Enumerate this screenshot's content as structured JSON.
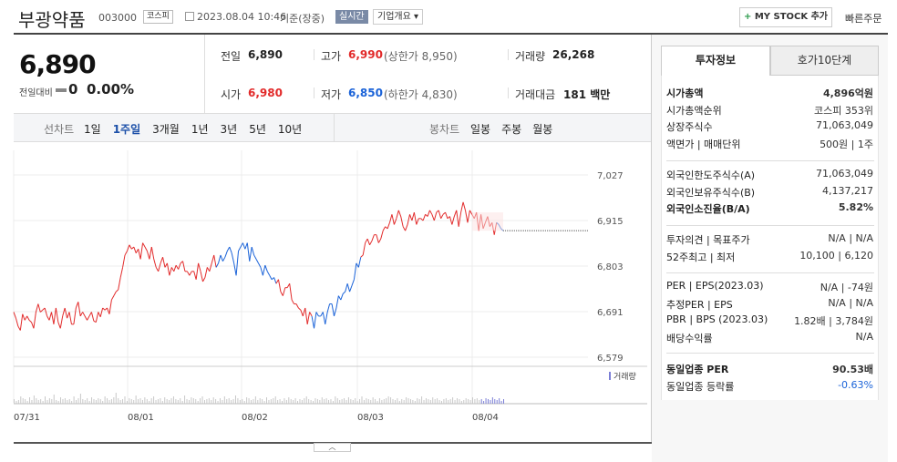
{
  "header": {
    "name": "부광약품",
    "code": "003000",
    "market": "코스피",
    "datetime": "2023.08.04 10:46",
    "basis": "기준(장중)",
    "realtime": "실시간",
    "company_info": "기업개요",
    "mystock": "MY STOCK 추가",
    "quick_order": "빠른주문"
  },
  "price": {
    "current": "6,890",
    "change_label": "전일대비",
    "change_value": "0",
    "change_pct": "0.00%"
  },
  "summary": {
    "prev_label": "전일",
    "prev_val": "6,890",
    "high_label": "고가",
    "high_val": "6,990",
    "upper_label": "(상한가 8,950)",
    "volume_label": "거래량",
    "volume_val": "26,268",
    "open_label": "시가",
    "open_val": "6,980",
    "low_label": "저가",
    "low_val": "6,850",
    "lower_label": "(하한가 4,830)",
    "amount_label": "거래대금",
    "amount_val": "181",
    "amount_unit": "백만"
  },
  "period_tabs": {
    "label": "선차트",
    "items": [
      "1일",
      "1주일",
      "3개월",
      "1년",
      "3년",
      "5년",
      "10년"
    ],
    "active": 1
  },
  "candle_tabs": {
    "label": "봉차트",
    "items": [
      "일봉",
      "주봉",
      "월봉"
    ]
  },
  "chart_data": {
    "type": "line",
    "y_ticks": [
      "7,027",
      "6,915",
      "6,803",
      "6,691",
      "6,579"
    ],
    "ylim": [
      6579,
      7027
    ],
    "x_ticks": [
      "07/31",
      "08/01",
      "08/02",
      "08/03",
      "08/04"
    ],
    "current_level": 6890,
    "volume_label": "거래량",
    "series": {
      "values": [
        6690,
        6675,
        6655,
        6645,
        6685,
        6670,
        6680,
        6670,
        6665,
        6650,
        6690,
        6710,
        6690,
        6695,
        6700,
        6680,
        6670,
        6690,
        6660,
        6700,
        6665,
        6650,
        6680,
        6700,
        6675,
        6690,
        6660,
        6660,
        6700,
        6715,
        6680,
        6690,
        6680,
        6670,
        6680,
        6690,
        6668,
        6665,
        6690,
        6678,
        6700,
        6695,
        6700,
        6685,
        6720,
        6730,
        6740,
        6745,
        6775,
        6800,
        6830,
        6840,
        6855,
        6845,
        6850,
        6835,
        6845,
        6820,
        6860,
        6850,
        6840,
        6820,
        6850,
        6820,
        6800,
        6790,
        6810,
        6825,
        6800,
        6810,
        6780,
        6800,
        6790,
        6805,
        6795,
        6810,
        6815,
        6790,
        6790,
        6780,
        6790,
        6790,
        6770,
        6810,
        6790,
        6765,
        6775,
        6800,
        6790,
        6810,
        6830,
        6800,
        6810,
        6830,
        6815,
        6825,
        6840,
        6850,
        6835,
        6810,
        6780,
        6840,
        6850,
        6860,
        6845,
        6860,
        6815,
        6850,
        6830,
        6820,
        6810,
        6800,
        6780,
        6805,
        6790,
        6780,
        6770,
        6775,
        6760,
        6770,
        6740,
        6730,
        6750,
        6750,
        6760,
        6720,
        6710,
        6710,
        6700,
        6695,
        6680,
        6700,
        6660,
        6690,
        6680,
        6650,
        6690,
        6680,
        6680,
        6690,
        6660,
        6690,
        6710,
        6710,
        6680,
        6700,
        6730,
        6720,
        6735,
        6740,
        6760,
        6740,
        6755,
        6770,
        6810,
        6800,
        6825,
        6830,
        6860,
        6870,
        6855,
        6865,
        6880,
        6880,
        6860,
        6870,
        6890,
        6900,
        6895,
        6910,
        6930,
        6905,
        6920,
        6940,
        6925,
        6900,
        6890,
        6905,
        6930,
        6915,
        6935,
        6905,
        6920,
        6920,
        6915,
        6930,
        6925,
        6940,
        6930,
        6915,
        6935,
        6940,
        6920,
        6930,
        6935,
        6920,
        6925,
        6905,
        6925,
        6940,
        6900,
        6935,
        6960,
        6940,
        6910,
        6940,
        6930,
        6920,
        6935,
        6890,
        6930,
        6895,
        6910,
        6925,
        6900,
        6910,
        6880,
        6910,
        6905,
        6895,
        6890
      ],
      "colors": {
        "up": "#e22b2b",
        "down": "#1b63d8"
      }
    },
    "volume": [
      5,
      3,
      4,
      8,
      6,
      5,
      3,
      7,
      4,
      9,
      6,
      4,
      5,
      3,
      8,
      4,
      6,
      5,
      10,
      4,
      3,
      7,
      5,
      6,
      4,
      5,
      3,
      8,
      4,
      6,
      11,
      5,
      4,
      6,
      3,
      7,
      5,
      4,
      6,
      5,
      3,
      8,
      6,
      4,
      5,
      7,
      12,
      6,
      4,
      5,
      8,
      3,
      6,
      5,
      4,
      9,
      5,
      6,
      4,
      7,
      5,
      3,
      6,
      8,
      4,
      5,
      6,
      3,
      7,
      5,
      4,
      6,
      8,
      5,
      4,
      6,
      3,
      9,
      5,
      4,
      7,
      6,
      5,
      3,
      6,
      8,
      4,
      5,
      6,
      4,
      7,
      5,
      3,
      6,
      4,
      8,
      5,
      6,
      4,
      5,
      9,
      6,
      4,
      5,
      3,
      7,
      6,
      4,
      5,
      8,
      4,
      6,
      5,
      3,
      7,
      4,
      5,
      6,
      8,
      4,
      5,
      3,
      6,
      4,
      7,
      5,
      4,
      6,
      3,
      5,
      4,
      6,
      8,
      5,
      4,
      3,
      6,
      5,
      4,
      7,
      5,
      6,
      4,
      5,
      3,
      8,
      6,
      4,
      5,
      6,
      4,
      7,
      5,
      4,
      6,
      3,
      5,
      8,
      4,
      6,
      5,
      4,
      7,
      5,
      3,
      6,
      4,
      5,
      6,
      8,
      7,
      5,
      4,
      6,
      3,
      5,
      4,
      7,
      6,
      5,
      4,
      3,
      6,
      5,
      8,
      4,
      6,
      5,
      4,
      7,
      5,
      6,
      4,
      3,
      5,
      6,
      4,
      5,
      7,
      4,
      6,
      5,
      3,
      4,
      6,
      5,
      4,
      7,
      5,
      6,
      4,
      5,
      3,
      6,
      5,
      4,
      7,
      5,
      4,
      6,
      3,
      5
    ]
  },
  "tabs": {
    "invest": "투자정보",
    "order": "호가10단계"
  },
  "invest": {
    "g1": [
      {
        "l": "시가총액",
        "v": "4,896억원",
        "bold": true
      },
      {
        "l": "시가총액순위",
        "v": "코스피 353위"
      },
      {
        "l": "상장주식수",
        "v": "71,063,049"
      },
      {
        "l": "액면가 | 매매단위",
        "v": "500원 | 1주"
      }
    ],
    "g2": [
      {
        "l": "외국인한도주식수(A)",
        "v": "71,063,049"
      },
      {
        "l": "외국인보유주식수(B)",
        "v": "4,137,217"
      },
      {
        "l": "외국인소진율(B/A)",
        "v": "5.82%",
        "bold": true
      }
    ],
    "g3": [
      {
        "l": "투자의견 | 목표주가",
        "v": "N/A | N/A"
      },
      {
        "l": "52주최고 | 최저",
        "v": "10,100 | 6,120"
      }
    ],
    "g4": [
      {
        "l": "PER | EPS(2023.03)",
        "v": "N/A | -74원"
      },
      {
        "l": "추정PER | EPS",
        "v": "N/A | N/A"
      },
      {
        "l": "PBR | BPS (2023.03)",
        "v": "1.82배 | 3,784원"
      },
      {
        "l": "배당수익률",
        "v": "N/A"
      }
    ],
    "g5": [
      {
        "l": "동일업종 PER",
        "v": "90.53배",
        "bold": true
      },
      {
        "l": "동일업종 등락률",
        "v": "-0.63%",
        "blue": true
      }
    ]
  }
}
